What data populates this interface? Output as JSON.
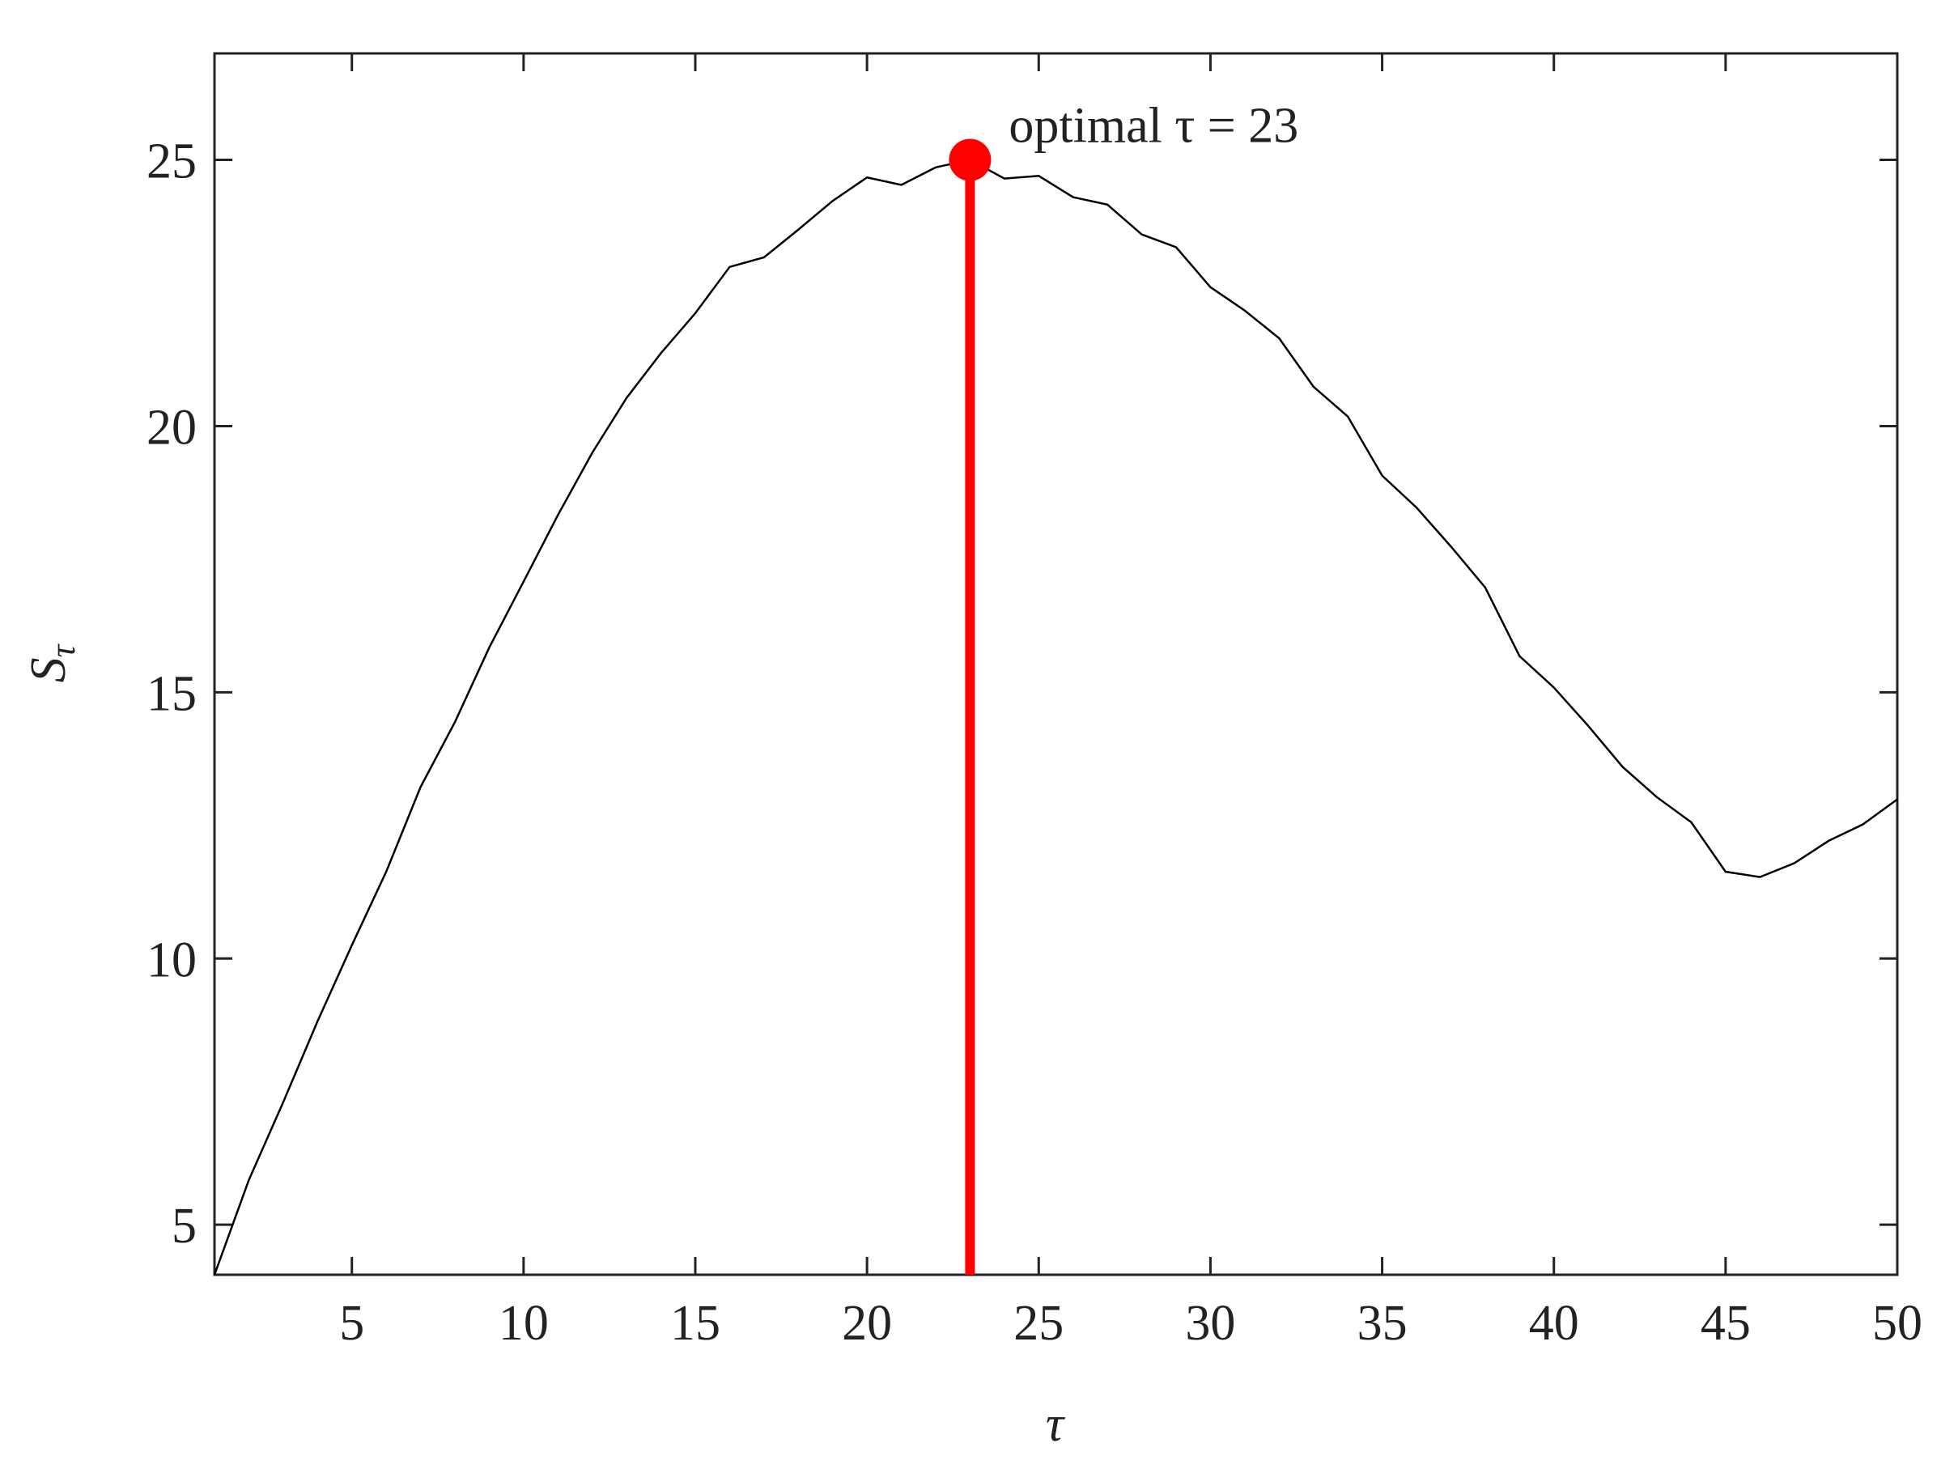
{
  "chart_data": {
    "type": "line",
    "x_label": "τ",
    "y_label": "S",
    "y_label_sub": "τ",
    "x": [
      1,
      2,
      3,
      4,
      5,
      6,
      7,
      8,
      9,
      10,
      11,
      12,
      13,
      14,
      15,
      16,
      17,
      18,
      19,
      20,
      21,
      22,
      23,
      24,
      25,
      26,
      27,
      28,
      29,
      30,
      31,
      32,
      33,
      34,
      35,
      36,
      37,
      38,
      39,
      40,
      41,
      42,
      43,
      44,
      45,
      46,
      47,
      48,
      49,
      50
    ],
    "series": [
      {
        "color": "#000000",
        "values": [
          4.06,
          5.84,
          7.3,
          8.82,
          10.25,
          11.63,
          13.22,
          14.44,
          15.84,
          17.08,
          18.33,
          19.5,
          20.53,
          21.37,
          22.12,
          22.99,
          23.17,
          23.69,
          24.23,
          24.67,
          24.53,
          24.86,
          25.0,
          24.65,
          24.7,
          24.3,
          24.16,
          23.6,
          23.36,
          22.61,
          22.17,
          21.65,
          20.74,
          20.18,
          19.07,
          18.47,
          17.74,
          16.97,
          15.68,
          15.09,
          14.37,
          13.6,
          13.03,
          12.56,
          11.63,
          11.53,
          11.79,
          12.21,
          12.52,
          12.99
        ]
      }
    ],
    "optimal": {
      "x": 23,
      "y": 25.0,
      "label": "optimal τ = 23",
      "color": "#ff0000"
    },
    "xlim": [
      1,
      50
    ],
    "ylim": [
      4.06,
      27
    ],
    "xticks": [
      5,
      10,
      15,
      20,
      25,
      30,
      35,
      40,
      45,
      50
    ],
    "yticks": [
      5,
      10,
      15,
      20,
      25
    ]
  }
}
